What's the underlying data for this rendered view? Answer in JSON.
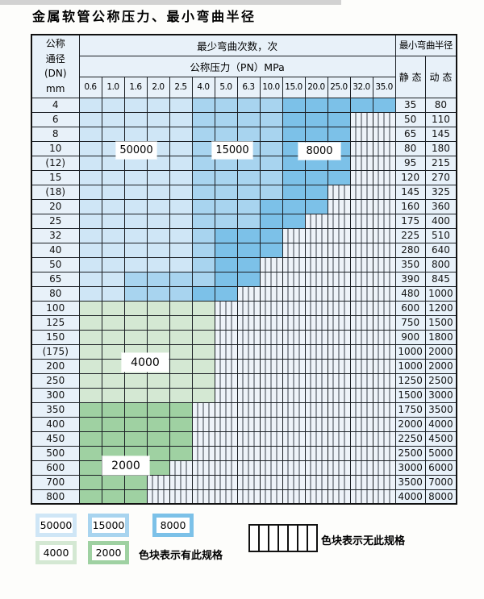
{
  "page": {
    "title": "金属软管公称压力、最小弯曲半径"
  },
  "table": {
    "corner_lines": [
      "公称",
      "通径",
      "(DN)",
      "mm"
    ],
    "cycles_header": "最少弯曲次数，次",
    "pressure_header": "公称压力（PN）MPa",
    "radius_header": "最小弯曲半径",
    "static_label": "静 态",
    "dynamic_label": "动 态",
    "pressures": [
      "0.6",
      "1.0",
      "1.6",
      "2.0",
      "2.5",
      "4.0",
      "5.0",
      "6.3",
      "10.0",
      "15.0",
      "20.0",
      "25.0",
      "32.0",
      "35.0"
    ],
    "rows": [
      {
        "dn": "4",
        "bands": {
          "50000": [
            0,
            4
          ],
          "15000": [
            5,
            8
          ],
          "8000": [
            9,
            13
          ]
        },
        "static": "35",
        "dynamic": "80"
      },
      {
        "dn": "6",
        "bands": {
          "50000": [
            0,
            4
          ],
          "15000": [
            5,
            8
          ],
          "8000": [
            9,
            11
          ]
        },
        "static": "50",
        "dynamic": "110"
      },
      {
        "dn": "8",
        "bands": {
          "50000": [
            0,
            4
          ],
          "15000": [
            5,
            8
          ],
          "8000": [
            9,
            11
          ]
        },
        "static": "65",
        "dynamic": "145"
      },
      {
        "dn": "10",
        "bands": {
          "50000": [
            0,
            4
          ],
          "15000": [
            5,
            8
          ],
          "8000": [
            9,
            11
          ]
        },
        "static": "80",
        "dynamic": "180"
      },
      {
        "dn": "(12)",
        "bands": {
          "50000": [
            0,
            4
          ],
          "15000": [
            5,
            8
          ],
          "8000": [
            9,
            11
          ]
        },
        "static": "95",
        "dynamic": "215"
      },
      {
        "dn": "15",
        "bands": {
          "50000": [
            0,
            4
          ],
          "15000": [
            5,
            8
          ],
          "8000": [
            9,
            11
          ]
        },
        "static": "120",
        "dynamic": "270"
      },
      {
        "dn": "(18)",
        "bands": {
          "50000": [
            0,
            4
          ],
          "15000": [
            5,
            8
          ],
          "8000": [
            9,
            10
          ]
        },
        "static": "145",
        "dynamic": "325"
      },
      {
        "dn": "20",
        "bands": {
          "50000": [
            0,
            4
          ],
          "15000": [
            5,
            7
          ],
          "8000": [
            8,
            10
          ]
        },
        "static": "160",
        "dynamic": "360"
      },
      {
        "dn": "25",
        "bands": {
          "50000": [
            0,
            4
          ],
          "15000": [
            5,
            7
          ],
          "8000": [
            8,
            9
          ]
        },
        "static": "175",
        "dynamic": "400"
      },
      {
        "dn": "32",
        "bands": {
          "50000": [
            0,
            4
          ],
          "15000": [
            5,
            5
          ],
          "8000": [
            6,
            8
          ]
        },
        "static": "225",
        "dynamic": "510"
      },
      {
        "dn": "40",
        "bands": {
          "50000": [
            0,
            4
          ],
          "15000": [
            5,
            5
          ],
          "8000": [
            6,
            8
          ]
        },
        "static": "280",
        "dynamic": "640"
      },
      {
        "dn": "50",
        "bands": {
          "50000": [
            0,
            4
          ],
          "15000": [
            5,
            5
          ],
          "8000": [
            6,
            7
          ]
        },
        "static": "350",
        "dynamic": "800"
      },
      {
        "dn": "65",
        "bands": {
          "50000": [
            0,
            1
          ],
          "15000": [
            2,
            5
          ],
          "8000": [
            6,
            7
          ]
        },
        "static": "390",
        "dynamic": "845"
      },
      {
        "dn": "80",
        "bands": {
          "50000": [
            0,
            1
          ],
          "15000": [
            2,
            4
          ],
          "8000": [
            5,
            6
          ]
        },
        "static": "480",
        "dynamic": "1000"
      },
      {
        "dn": "100",
        "bands": {
          "4000": [
            0,
            5
          ]
        },
        "static": "600",
        "dynamic": "1200"
      },
      {
        "dn": "125",
        "bands": {
          "4000": [
            0,
            5
          ]
        },
        "static": "750",
        "dynamic": "1500"
      },
      {
        "dn": "150",
        "bands": {
          "4000": [
            0,
            5
          ]
        },
        "static": "900",
        "dynamic": "1800"
      },
      {
        "dn": "(175)",
        "bands": {
          "4000": [
            0,
            5
          ]
        },
        "static": "1000",
        "dynamic": "2000"
      },
      {
        "dn": "200",
        "bands": {
          "4000": [
            0,
            5
          ]
        },
        "static": "1000",
        "dynamic": "2000"
      },
      {
        "dn": "250",
        "bands": {
          "4000": [
            0,
            5
          ]
        },
        "static": "1250",
        "dynamic": "2500"
      },
      {
        "dn": "300",
        "bands": {
          "4000": [
            0,
            5
          ]
        },
        "static": "1500",
        "dynamic": "3000"
      },
      {
        "dn": "350",
        "bands": {
          "2000": [
            0,
            4
          ]
        },
        "static": "1750",
        "dynamic": "3500"
      },
      {
        "dn": "400",
        "bands": {
          "2000": [
            0,
            4
          ]
        },
        "static": "2000",
        "dynamic": "4000"
      },
      {
        "dn": "450",
        "bands": {
          "2000": [
            0,
            4
          ]
        },
        "static": "2250",
        "dynamic": "4500"
      },
      {
        "dn": "500",
        "bands": {
          "2000": [
            0,
            4
          ]
        },
        "static": "2500",
        "dynamic": "5000"
      },
      {
        "dn": "600",
        "bands": {
          "2000": [
            0,
            3
          ]
        },
        "static": "3000",
        "dynamic": "6000"
      },
      {
        "dn": "700",
        "bands": {
          "2000": [
            0,
            2
          ]
        },
        "static": "3500",
        "dynamic": "7000"
      },
      {
        "dn": "800",
        "bands": {
          "2000": [
            0,
            2
          ]
        },
        "static": "4000",
        "dynamic": "8000"
      }
    ]
  },
  "overlay_labels": {
    "l50000": "50000",
    "l15000": "15000",
    "l8000": "8000",
    "l4000": "4000",
    "l2000": "2000"
  },
  "legend": {
    "b50000": "50000",
    "b15000": "15000",
    "b8000": "8000",
    "g4000": "4000",
    "g2000": "2000",
    "available_text": "色块表示有此规格",
    "unavailable_text": "色块表示无此规格"
  },
  "colors": {
    "cycles_50000": "#cfe6f6",
    "cycles_15000": "#a8d4ef",
    "cycles_8000": "#7cc1e8",
    "cycles_4000": "#d4e8d3",
    "cycles_2000": "#9fd1a2",
    "header_cell": "#e8f1f9",
    "grid_line": "#1b1f24"
  }
}
